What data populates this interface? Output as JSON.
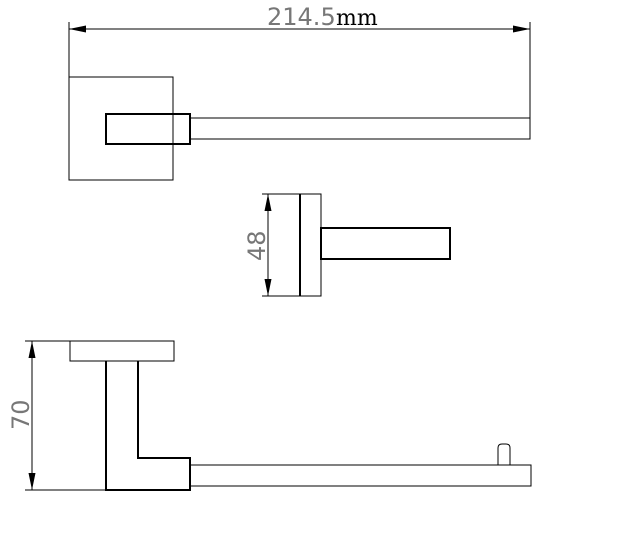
{
  "dimensions": {
    "width": {
      "value": "214.5",
      "unit": "mm"
    },
    "depth": {
      "value": "48"
    },
    "height": {
      "value": "70"
    }
  }
}
